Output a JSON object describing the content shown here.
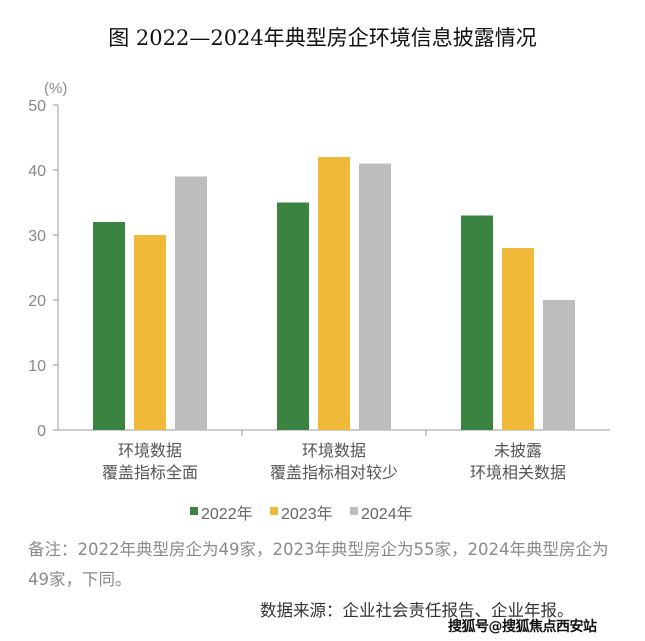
{
  "title": "图   2022—2024年典型房企环境信息披露情况",
  "chart_data": {
    "type": "bar",
    "title": "图   2022—2024年典型房企环境信息披露情况",
    "ylabel": "(%)",
    "ylim": [
      0,
      50
    ],
    "yticks": [
      0,
      10,
      20,
      30,
      40,
      50
    ],
    "grid": false,
    "legend_position": "bottom",
    "categories": [
      [
        "环境数据",
        "覆盖指标全面"
      ],
      [
        "环境数据",
        "覆盖指标相对较少"
      ],
      [
        "未披露",
        "环境相关数据"
      ]
    ],
    "series": [
      {
        "name": "2022年",
        "color": "#3a8340",
        "values": [
          32,
          35,
          33
        ]
      },
      {
        "name": "2023年",
        "color": "#f0b93a",
        "values": [
          30,
          42,
          28
        ]
      },
      {
        "name": "2024年",
        "color": "#bdbdbf",
        "values": [
          39,
          41,
          20
        ]
      }
    ]
  },
  "note": "备注：2022年典型房企为49家，2023年典型房企为55家，2024年典型房企为49家，下同。",
  "source": "数据来源：企业社会责任报告、企业年报。",
  "watermark": "搜狐号@搜狐焦点西安站"
}
